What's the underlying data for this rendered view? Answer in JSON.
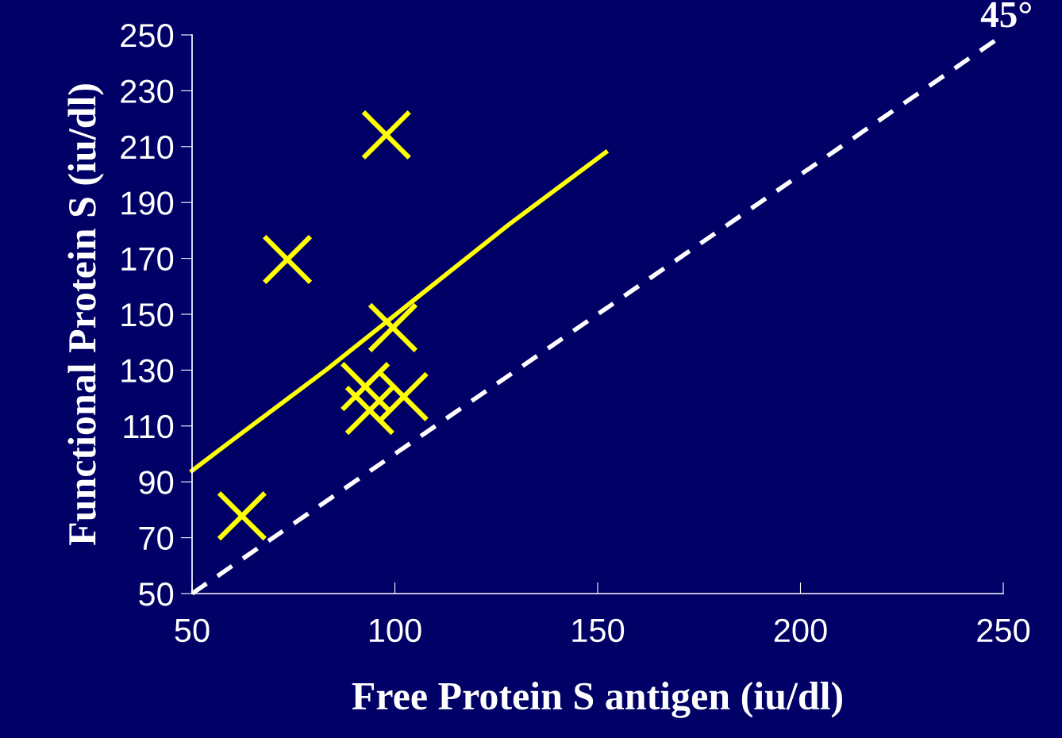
{
  "chart_data": {
    "type": "scatter",
    "xlabel": "Free Protein S antigen (iu/dl)",
    "ylabel": "Functional Protein S (iu/dl)",
    "xlim": [
      50,
      250
    ],
    "xticks": [
      50,
      100,
      150,
      200,
      250
    ],
    "ylim": [
      50,
      250
    ],
    "yticks": [
      50,
      70,
      90,
      110,
      130,
      150,
      170,
      190,
      210,
      230,
      250
    ],
    "grid": false,
    "legend": false,
    "series": [
      {
        "marker": "cross",
        "color": "#ffff00",
        "x": [
          62.3,
          73.5,
          97.9,
          99.5,
          92.7,
          93.8,
          102.2
        ],
        "values": [
          77.8,
          169.6,
          214.2,
          145.2,
          124.1,
          115.6,
          120.5
        ]
      },
      {
        "type": "line",
        "marker": "none",
        "color": "#ffff00",
        "line_style": "solid",
        "x": [
          50,
          60,
          83,
          128,
          152
        ],
        "values": [
          94,
          105,
          130,
          182,
          208
        ]
      },
      {
        "type": "line",
        "marker": "none",
        "color": "#ffffff",
        "line_style": "dashed",
        "x": [
          50,
          250
        ],
        "values": [
          50,
          250
        ]
      }
    ],
    "annotations": [
      {
        "text": "45°",
        "x": 250,
        "y": 250
      }
    ]
  }
}
